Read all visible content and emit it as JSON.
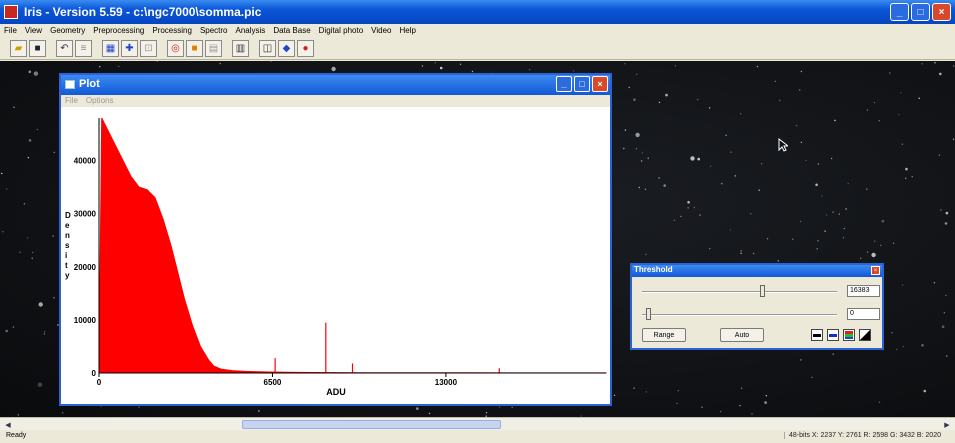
{
  "app": {
    "title": "Iris - Version 5.59 - c:\\ngc7000\\somma.pic",
    "window_buttons": [
      "_",
      "□",
      "×"
    ]
  },
  "menubar": [
    "File",
    "View",
    "Geometry",
    "Preprocessing",
    "Processing",
    "Spectro",
    "Analysis",
    "Data Base",
    "Digital photo",
    "Video",
    "Help"
  ],
  "toolbar": {
    "icons": [
      "open-icon",
      "save-icon",
      "undo-icon",
      "thumbnails-icon",
      "grid-icon",
      "crosshair-icon",
      "zoom-icon",
      "target-icon",
      "stop-icon",
      "image-icon",
      "histogram-icon",
      "camera-icon",
      "diamond-icon",
      "record-icon"
    ]
  },
  "plot_window": {
    "title": "Plot",
    "menu": [
      "File",
      "Options"
    ],
    "buttons": [
      "_",
      "□",
      "×"
    ]
  },
  "threshold_window": {
    "title": "Threshold",
    "high_value": "16383",
    "low_value": "0",
    "high_level": 0.62,
    "low_level": 0.02,
    "range_label": "Range",
    "auto_label": "Auto",
    "palette_icons": [
      "mono-palette-icon",
      "blue-palette-icon",
      "rainbow-palette-icon",
      "gradient-palette-icon"
    ]
  },
  "statusbar": {
    "left": "Ready",
    "right": "48-bits X: 2237 Y: 2761 R: 2598 G: 3432 B: 2020"
  },
  "colors": {
    "plot_fill": "#ff0000",
    "titlebar": "#0a55d8",
    "workspace": "#0b0c0e"
  },
  "chart_data": {
    "type": "area",
    "title": "",
    "xlabel": "ADU",
    "ylabel": "Density",
    "xlim": [
      0,
      19000
    ],
    "ylim": [
      0,
      48000
    ],
    "x_ticks": [
      "0",
      "6500",
      "13000"
    ],
    "y_ticks": [
      "0",
      "10000",
      "20000",
      "30000",
      "40000"
    ],
    "series": [
      {
        "x": [
          0,
          100,
          300,
          600,
          900,
          1200,
          1500,
          1800,
          2100,
          2400,
          2700,
          2900,
          3200,
          3500,
          3800,
          4100,
          4300,
          4600,
          5000,
          5500,
          6000,
          6400,
          7000,
          8000,
          9000,
          10000,
          12000,
          14000,
          16000,
          19000
        ],
        "values": [
          0,
          48000,
          46000,
          43000,
          40000,
          37000,
          35000,
          34500,
          33000,
          29000,
          24000,
          20000,
          14000,
          9000,
          5000,
          2500,
          1300,
          700,
          450,
          300,
          220,
          180,
          150,
          100,
          80,
          60,
          40,
          30,
          20,
          10
        ]
      }
    ],
    "spikes": [
      {
        "x": 6600,
        "value": 2800
      },
      {
        "x": 8500,
        "value": 9500
      },
      {
        "x": 9500,
        "value": 1800
      },
      {
        "x": 15000,
        "value": 900
      }
    ]
  }
}
